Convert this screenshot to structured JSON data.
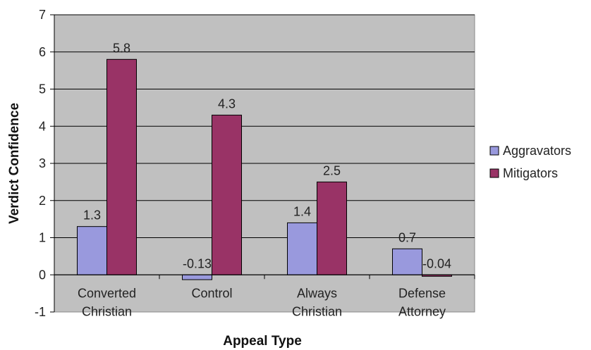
{
  "chart_data": {
    "type": "bar",
    "categories": [
      [
        "Converted",
        "Christian"
      ],
      [
        "Control"
      ],
      [
        "Always",
        "Christian"
      ],
      [
        "Defense",
        "Attorney"
      ]
    ],
    "series": [
      {
        "name": "Aggravators",
        "values": [
          1.3,
          -0.13,
          1.4,
          0.7
        ],
        "labels": [
          "1.3",
          "-0.13",
          "1.4",
          "0.7"
        ],
        "color": "#9999dd"
      },
      {
        "name": "Mitigators",
        "values": [
          5.8,
          4.3,
          2.5,
          -0.04
        ],
        "labels": [
          "5.8",
          "4.3",
          "2.5",
          "-0.04"
        ],
        "color": "#993366"
      }
    ],
    "xlabel": "Appeal Type",
    "ylabel": "Verdict Confidence",
    "ylim": [
      -1,
      7
    ],
    "yticks": [
      "-1",
      "0",
      "1",
      "2",
      "3",
      "4",
      "5",
      "6",
      "7"
    ],
    "grid": true,
    "plot_background": "#c0c0c0",
    "legend_position": "right"
  }
}
